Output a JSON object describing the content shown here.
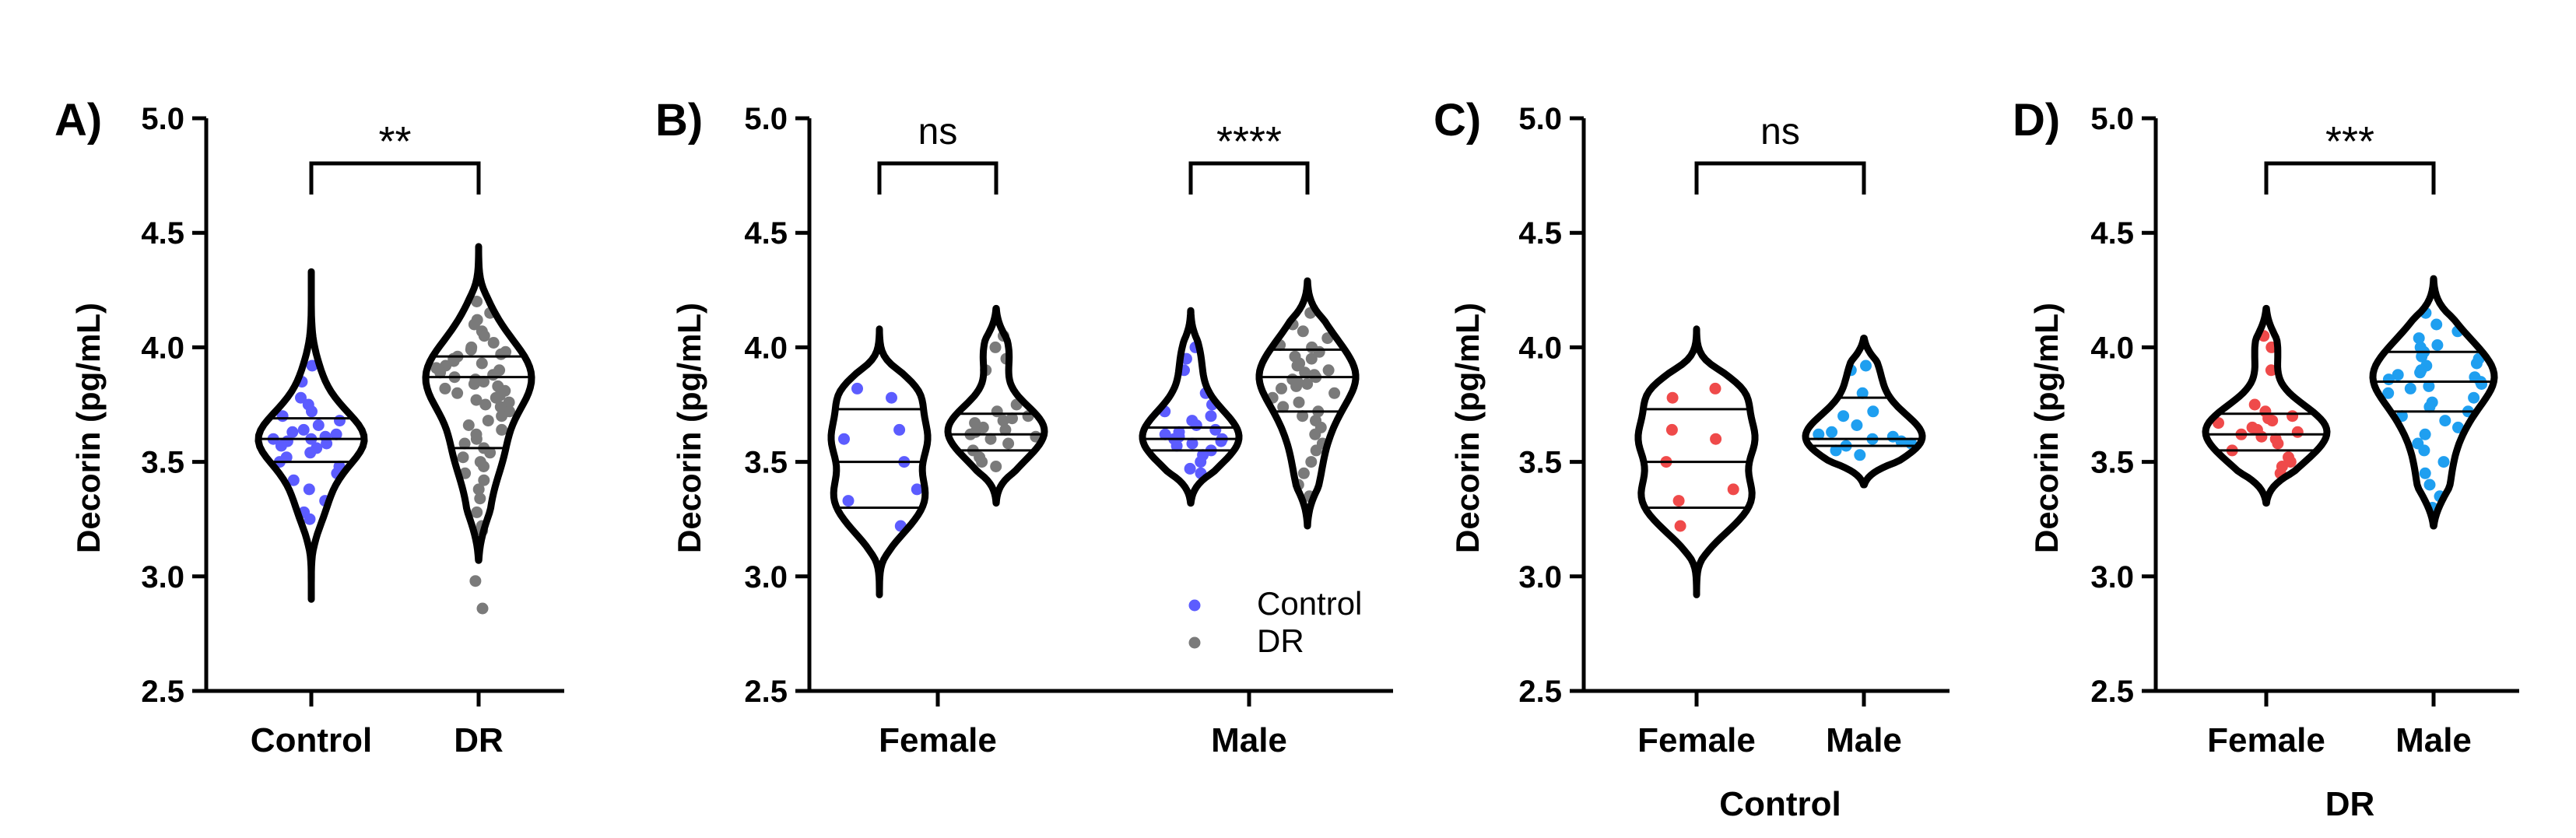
{
  "colors": {
    "Control": "#5c5cff",
    "DR": "#7a7a7a",
    "Female": "#ef4a4a",
    "Male": "#1f9ff0",
    "violin": "#000000"
  },
  "chart_data": [
    {
      "panel": "A)",
      "type": "violin",
      "ylabel": "Decorin (pg/mL)",
      "ylim": [
        2.5,
        5.0
      ],
      "yticks": [
        2.5,
        3.0,
        3.5,
        4.0,
        4.5,
        5.0
      ],
      "ytick_labels": [
        "2.5",
        "3.0",
        "3.5",
        "4.0",
        "4.5",
        "5.0"
      ],
      "categories": [
        "Control",
        "DR"
      ],
      "group_label": "",
      "series": [
        {
          "category": "Control",
          "color_key": "Control",
          "median": 3.6,
          "q1": 3.5,
          "q3": 3.69,
          "min": 2.9,
          "max": 4.33,
          "points": [
            3.92,
            3.85,
            3.78,
            3.75,
            3.72,
            3.7,
            3.68,
            3.66,
            3.64,
            3.63,
            3.62,
            3.61,
            3.6,
            3.6,
            3.59,
            3.58,
            3.57,
            3.56,
            3.54,
            3.52,
            3.5,
            3.48,
            3.45,
            3.42,
            3.38,
            3.33,
            3.28,
            3.25
          ]
        },
        {
          "category": "DR",
          "color_key": "DR",
          "median": 3.87,
          "q1": 3.56,
          "q3": 3.96,
          "min": 3.07,
          "max": 4.44,
          "points": [
            4.2,
            4.15,
            4.12,
            4.1,
            4.07,
            4.05,
            4.02,
            4.0,
            3.99,
            3.98,
            3.97,
            3.96,
            3.95,
            3.94,
            3.93,
            3.92,
            3.91,
            3.9,
            3.89,
            3.88,
            3.87,
            3.86,
            3.85,
            3.84,
            3.83,
            3.82,
            3.81,
            3.8,
            3.79,
            3.78,
            3.77,
            3.76,
            3.75,
            3.74,
            3.72,
            3.7,
            3.68,
            3.66,
            3.64,
            3.62,
            3.6,
            3.58,
            3.56,
            3.54,
            3.52,
            3.5,
            3.48,
            3.45,
            3.42,
            3.38,
            3.34,
            3.28,
            3.22,
            3.2,
            2.98,
            2.86
          ]
        }
      ],
      "comparisons": [
        {
          "from": 0,
          "to": 1,
          "label": "**"
        }
      ],
      "legend": []
    },
    {
      "panel": "B)",
      "type": "violin",
      "ylabel": "Decorin (pg/mL)",
      "ylim": [
        2.5,
        5.0
      ],
      "yticks": [
        2.5,
        3.0,
        3.5,
        4.0,
        4.5,
        5.0
      ],
      "ytick_labels": [
        "2.5",
        "3.0",
        "3.5",
        "4.0",
        "4.5",
        "5.0"
      ],
      "categories": [
        "Female",
        "Male"
      ],
      "group_label": "",
      "series": [
        {
          "category": "Female",
          "slot": 0,
          "color_key": "Control",
          "median": 3.5,
          "q1": 3.3,
          "q3": 3.73,
          "min": 2.92,
          "max": 4.08,
          "points": [
            3.82,
            3.78,
            3.64,
            3.6,
            3.5,
            3.38,
            3.33,
            3.22
          ]
        },
        {
          "category": "Female",
          "slot": 1,
          "color_key": "DR",
          "median": 3.62,
          "q1": 3.55,
          "q3": 3.71,
          "min": 3.32,
          "max": 4.17,
          "points": [
            4.05,
            4.0,
            3.95,
            3.9,
            3.75,
            3.72,
            3.7,
            3.69,
            3.68,
            3.67,
            3.65,
            3.64,
            3.63,
            3.62,
            3.61,
            3.6,
            3.58,
            3.55,
            3.52,
            3.5,
            3.48
          ]
        },
        {
          "category": "Male",
          "slot": 0,
          "color_key": "Control",
          "median": 3.6,
          "q1": 3.55,
          "q3": 3.65,
          "min": 3.32,
          "max": 4.16,
          "points": [
            4.0,
            3.95,
            3.9,
            3.8,
            3.75,
            3.72,
            3.7,
            3.68,
            3.66,
            3.64,
            3.63,
            3.62,
            3.61,
            3.6,
            3.6,
            3.59,
            3.58,
            3.57,
            3.55,
            3.53,
            3.5,
            3.47,
            3.45
          ]
        },
        {
          "category": "Male",
          "slot": 1,
          "color_key": "DR",
          "median": 3.87,
          "q1": 3.72,
          "q3": 3.99,
          "min": 3.22,
          "max": 4.29,
          "points": [
            4.15,
            4.1,
            4.07,
            4.04,
            4.01,
            4.0,
            3.98,
            3.96,
            3.95,
            3.93,
            3.92,
            3.9,
            3.89,
            3.88,
            3.87,
            3.86,
            3.85,
            3.84,
            3.83,
            3.82,
            3.8,
            3.78,
            3.76,
            3.74,
            3.72,
            3.7,
            3.68,
            3.65,
            3.62,
            3.58,
            3.55,
            3.5,
            3.45,
            3.4,
            3.35
          ]
        }
      ],
      "comparisons": [
        {
          "category": "Female",
          "label": "ns"
        },
        {
          "category": "Male",
          "label": "****"
        }
      ],
      "legend": [
        {
          "label": "Control",
          "color_key": "Control"
        },
        {
          "label": "DR",
          "color_key": "DR"
        }
      ]
    },
    {
      "panel": "C)",
      "type": "violin",
      "ylabel": "Decorin (pg/mL)",
      "ylim": [
        2.5,
        5.0
      ],
      "yticks": [
        2.5,
        3.0,
        3.5,
        4.0,
        4.5,
        5.0
      ],
      "ytick_labels": [
        "2.5",
        "3.0",
        "3.5",
        "4.0",
        "4.5",
        "5.0"
      ],
      "categories": [
        "Female",
        "Male"
      ],
      "group_label": "Control",
      "series": [
        {
          "category": "Female",
          "color_key": "Female",
          "median": 3.5,
          "q1": 3.3,
          "q3": 3.73,
          "min": 2.92,
          "max": 4.08,
          "points": [
            3.82,
            3.78,
            3.64,
            3.6,
            3.5,
            3.38,
            3.33,
            3.22
          ]
        },
        {
          "category": "Male",
          "color_key": "Male",
          "median": 3.6,
          "q1": 3.57,
          "q3": 3.78,
          "min": 3.4,
          "max": 4.04,
          "points": [
            3.92,
            3.9,
            3.8,
            3.72,
            3.7,
            3.66,
            3.63,
            3.62,
            3.61,
            3.6,
            3.59,
            3.58,
            3.57,
            3.55,
            3.53
          ]
        }
      ],
      "comparisons": [
        {
          "from": 0,
          "to": 1,
          "label": "ns"
        }
      ],
      "legend": []
    },
    {
      "panel": "D)",
      "type": "violin",
      "ylabel": "Decorin (pg/mL)",
      "ylim": [
        2.5,
        5.0
      ],
      "yticks": [
        2.5,
        3.0,
        3.5,
        4.0,
        4.5,
        5.0
      ],
      "ytick_labels": [
        "2.5",
        "3.0",
        "3.5",
        "4.0",
        "4.5",
        "5.0"
      ],
      "categories": [
        "Female",
        "Male"
      ],
      "group_label": "DR",
      "series": [
        {
          "category": "Female",
          "color_key": "Female",
          "median": 3.62,
          "q1": 3.55,
          "q3": 3.71,
          "min": 3.32,
          "max": 4.17,
          "points": [
            4.05,
            4.0,
            3.9,
            3.75,
            3.72,
            3.7,
            3.69,
            3.68,
            3.67,
            3.65,
            3.64,
            3.63,
            3.62,
            3.61,
            3.6,
            3.58,
            3.55,
            3.52,
            3.5,
            3.48,
            3.45
          ]
        },
        {
          "category": "Male",
          "color_key": "Male",
          "median": 3.85,
          "q1": 3.72,
          "q3": 3.98,
          "min": 3.22,
          "max": 4.3,
          "points": [
            4.15,
            4.1,
            4.07,
            4.04,
            4.01,
            4.0,
            3.98,
            3.96,
            3.95,
            3.93,
            3.92,
            3.9,
            3.89,
            3.88,
            3.87,
            3.86,
            3.85,
            3.84,
            3.83,
            3.82,
            3.8,
            3.78,
            3.76,
            3.74,
            3.72,
            3.7,
            3.68,
            3.65,
            3.62,
            3.58,
            3.55,
            3.5,
            3.45,
            3.4,
            3.35,
            3.3
          ]
        }
      ],
      "comparisons": [
        {
          "from": 0,
          "to": 1,
          "label": "***"
        }
      ],
      "legend": []
    }
  ]
}
